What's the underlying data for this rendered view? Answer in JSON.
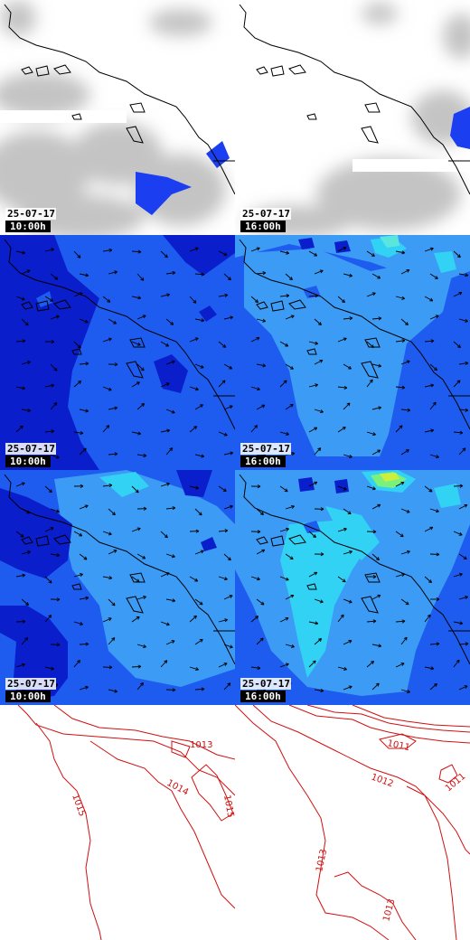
{
  "panels": [
    {
      "id": "cloud-10",
      "date": "25-07-17",
      "time": "10:00h"
    },
    {
      "id": "cloud-16",
      "date": "25-07-17",
      "time": "16:00h"
    },
    {
      "id": "wind-a-10",
      "date": "25-07-17",
      "time": "10:00h"
    },
    {
      "id": "wind-a-16",
      "date": "25-07-17",
      "time": "16:00h"
    },
    {
      "id": "wind-b-10",
      "date": "25-07-17",
      "time": "10:00h"
    },
    {
      "id": "wind-b-16",
      "date": "25-07-17",
      "time": "16:00h"
    }
  ],
  "pressure": {
    "left_labels": [
      "1013",
      "1014",
      "1015",
      "1015"
    ],
    "right_labels": [
      "1011",
      "1012",
      "1011",
      "1013",
      "1013"
    ]
  },
  "colors": {
    "cloud_gray": "#c8c8c8",
    "precip_blue": "#1a3ef0",
    "wind_dark": "#0a1ecc",
    "wind_mid": "#1e5cf0",
    "wind_light": "#3c9cf5",
    "wind_cyan": "#32d2f5",
    "wind_green": "#7cf07c",
    "isobar_red": "#d01010"
  }
}
